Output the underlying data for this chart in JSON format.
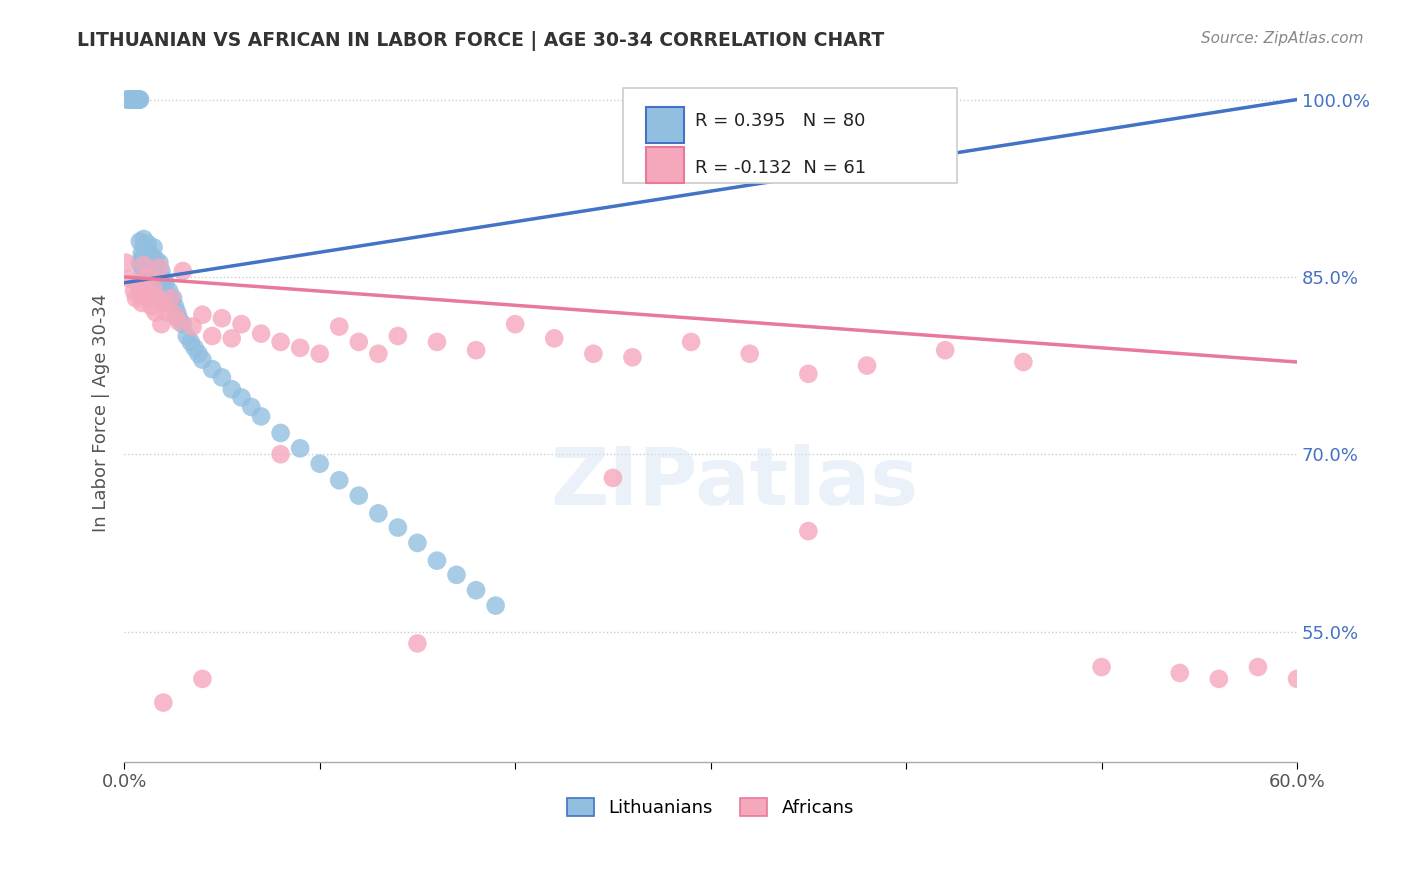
{
  "title": "LITHUANIAN VS AFRICAN IN LABOR FORCE | AGE 30-34 CORRELATION CHART",
  "source": "Source: ZipAtlas.com",
  "ylabel": "In Labor Force | Age 30-34",
  "watermark": "ZIPatlas",
  "legend_labels": [
    "Lithuanians",
    "Africans"
  ],
  "r_lith": 0.395,
  "n_lith": 80,
  "r_afr": -0.132,
  "n_afr": 61,
  "x_min": 0.0,
  "x_max": 0.6,
  "y_min": 0.44,
  "y_max": 1.03,
  "y_ticks": [
    0.55,
    0.7,
    0.85,
    1.0
  ],
  "y_tick_labels": [
    "55.0%",
    "70.0%",
    "85.0%",
    "100.0%"
  ],
  "blue_color": "#92BFE0",
  "pink_color": "#F5A8BC",
  "blue_line_color": "#4472C4",
  "pink_line_color": "#E8799A",
  "lith_x": [
    0.001,
    0.002,
    0.003,
    0.003,
    0.004,
    0.004,
    0.004,
    0.005,
    0.005,
    0.005,
    0.005,
    0.006,
    0.006,
    0.006,
    0.007,
    0.007,
    0.007,
    0.007,
    0.008,
    0.008,
    0.008,
    0.008,
    0.009,
    0.009,
    0.009,
    0.01,
    0.01,
    0.01,
    0.011,
    0.011,
    0.012,
    0.012,
    0.013,
    0.013,
    0.014,
    0.014,
    0.015,
    0.015,
    0.016,
    0.016,
    0.017,
    0.017,
    0.018,
    0.018,
    0.019,
    0.019,
    0.02,
    0.02,
    0.021,
    0.022,
    0.023,
    0.024,
    0.025,
    0.026,
    0.027,
    0.028,
    0.03,
    0.032,
    0.034,
    0.036,
    0.038,
    0.04,
    0.045,
    0.05,
    0.055,
    0.06,
    0.065,
    0.07,
    0.08,
    0.09,
    0.1,
    0.11,
    0.12,
    0.13,
    0.14,
    0.15,
    0.16,
    0.17,
    0.18,
    0.19
  ],
  "lith_y": [
    1.0,
    1.0,
    1.0,
    1.0,
    1.0,
    1.0,
    1.0,
    1.0,
    1.0,
    1.0,
    1.0,
    1.0,
    1.0,
    1.0,
    1.0,
    1.0,
    1.0,
    1.0,
    1.0,
    1.0,
    0.88,
    0.862,
    0.87,
    0.858,
    0.865,
    0.875,
    0.855,
    0.882,
    0.867,
    0.872,
    0.863,
    0.878,
    0.86,
    0.87,
    0.855,
    0.868,
    0.862,
    0.875,
    0.858,
    0.865,
    0.855,
    0.848,
    0.862,
    0.85,
    0.855,
    0.84,
    0.848,
    0.838,
    0.845,
    0.835,
    0.838,
    0.83,
    0.832,
    0.825,
    0.82,
    0.815,
    0.81,
    0.8,
    0.795,
    0.79,
    0.785,
    0.78,
    0.772,
    0.765,
    0.755,
    0.748,
    0.74,
    0.732,
    0.718,
    0.705,
    0.692,
    0.678,
    0.665,
    0.65,
    0.638,
    0.625,
    0.61,
    0.598,
    0.585,
    0.572
  ],
  "afr_x": [
    0.001,
    0.003,
    0.005,
    0.006,
    0.007,
    0.008,
    0.009,
    0.01,
    0.011,
    0.012,
    0.013,
    0.014,
    0.015,
    0.016,
    0.017,
    0.018,
    0.019,
    0.02,
    0.022,
    0.024,
    0.026,
    0.028,
    0.03,
    0.035,
    0.04,
    0.045,
    0.05,
    0.055,
    0.06,
    0.07,
    0.08,
    0.09,
    0.1,
    0.11,
    0.12,
    0.13,
    0.14,
    0.16,
    0.18,
    0.2,
    0.22,
    0.24,
    0.26,
    0.29,
    0.32,
    0.35,
    0.38,
    0.42,
    0.46,
    0.5,
    0.54,
    0.56,
    0.58,
    0.6,
    0.35,
    0.25,
    0.15,
    0.08,
    0.04,
    0.02,
    0.01
  ],
  "afr_y": [
    0.862,
    0.848,
    0.838,
    0.832,
    0.845,
    0.838,
    0.828,
    0.835,
    0.842,
    0.85,
    0.832,
    0.825,
    0.84,
    0.82,
    0.832,
    0.858,
    0.81,
    0.828,
    0.82,
    0.832,
    0.818,
    0.812,
    0.855,
    0.808,
    0.818,
    0.8,
    0.815,
    0.798,
    0.81,
    0.802,
    0.795,
    0.79,
    0.785,
    0.808,
    0.795,
    0.785,
    0.8,
    0.795,
    0.788,
    0.81,
    0.798,
    0.785,
    0.782,
    0.795,
    0.785,
    0.768,
    0.775,
    0.788,
    0.778,
    0.52,
    0.515,
    0.51,
    0.52,
    0.51,
    0.635,
    0.68,
    0.54,
    0.7,
    0.51,
    0.49,
    0.86
  ]
}
